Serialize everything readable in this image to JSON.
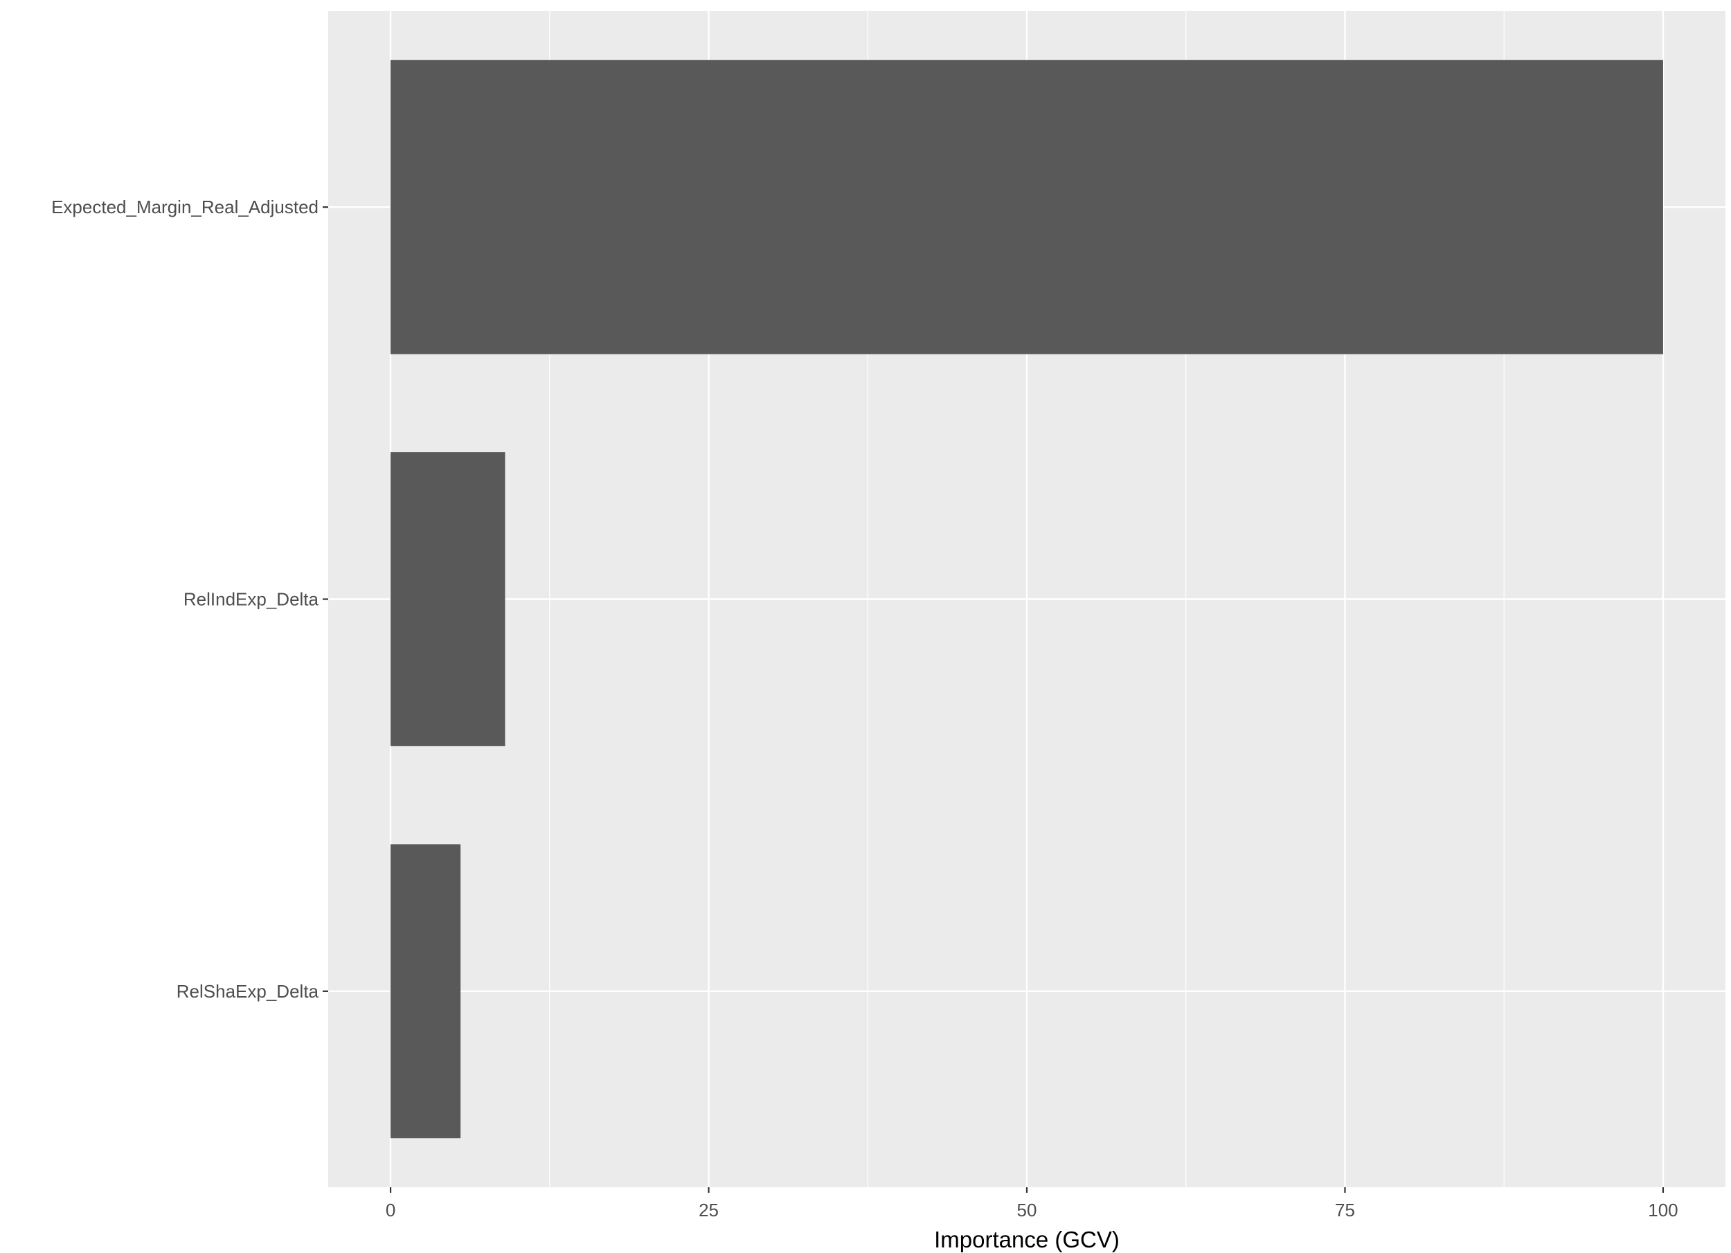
{
  "chart_data": {
    "type": "bar",
    "orientation": "horizontal",
    "categories": [
      "Expected_Margin_Real_Adjusted",
      "RelIndExp_Delta",
      "RelShaExp_Delta"
    ],
    "values": [
      100,
      9,
      5.5
    ],
    "xlabel": "Importance (GCV)",
    "ylabel": "",
    "xlim": [
      -4.9,
      104.9
    ],
    "x_ticks": [
      0,
      25,
      50,
      75,
      100
    ],
    "x_tick_labels": [
      "0",
      "25",
      "50",
      "75",
      "100"
    ],
    "grid": true,
    "legend": "none",
    "colors": {
      "panel_background": "#EBEBEB",
      "grid_major": "#FFFFFF",
      "bar_fill": "#595959",
      "tick_text": "#4D4D4D",
      "axis_title_text": "#000000",
      "tick_mark": "#333333"
    }
  }
}
